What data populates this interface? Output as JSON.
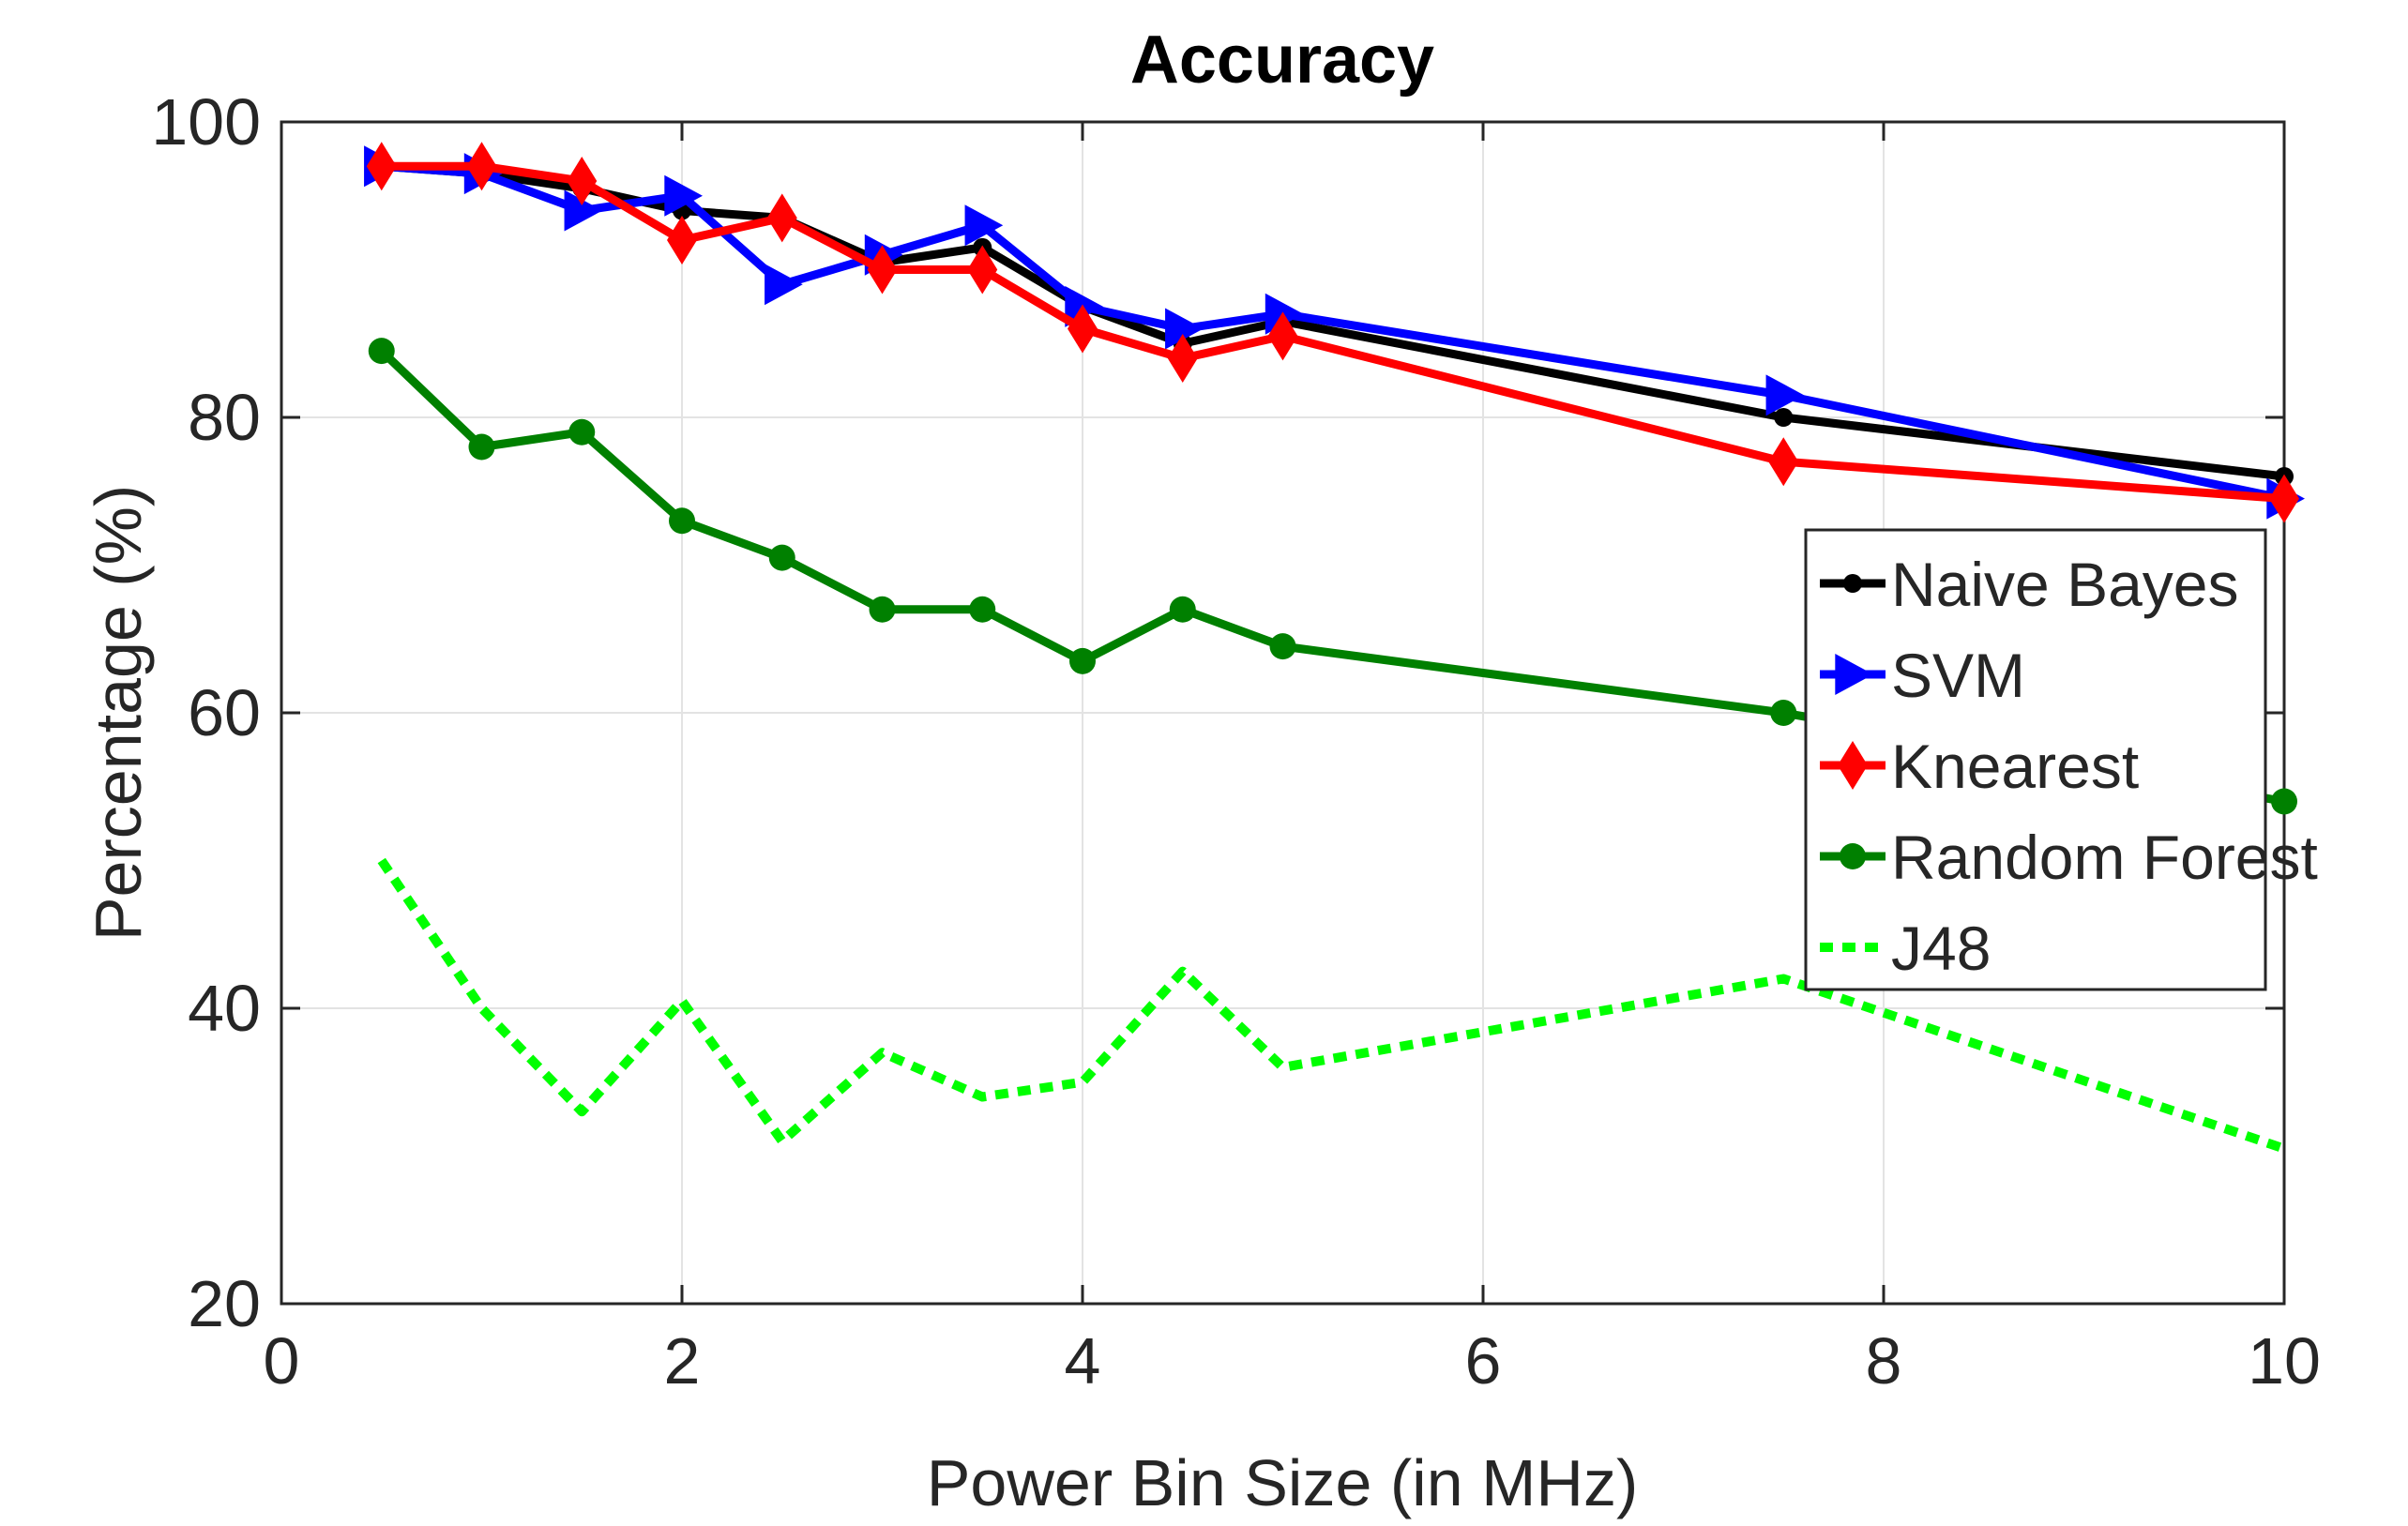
{
  "chart_data": {
    "type": "line",
    "title": "Accuracy",
    "xlabel": "Power Bin Size (in MHz)",
    "ylabel": "Percentage (%)",
    "xlim": [
      0,
      10
    ],
    "ylim": [
      20,
      100
    ],
    "xticks": [
      0,
      2,
      4,
      6,
      8,
      10
    ],
    "yticks": [
      20,
      40,
      60,
      80,
      100
    ],
    "grid": true,
    "legend_position": "center-right",
    "x": [
      0.5,
      1,
      1.5,
      2,
      2.5,
      3,
      3.5,
      4,
      4.5,
      5,
      7.5,
      10
    ],
    "series": [
      {
        "name": "Naive Bayes",
        "color": "#000000",
        "marker": "dot",
        "dashed": false,
        "values": [
          97,
          96.5,
          95.5,
          94,
          93.5,
          90.5,
          91.5,
          87.5,
          85,
          86.5,
          80,
          76
        ]
      },
      {
        "name": "SVM",
        "color": "#0000ff",
        "marker": "triangle-right",
        "dashed": false,
        "values": [
          97,
          96.5,
          94,
          95,
          89,
          91,
          93,
          87.5,
          86,
          87,
          81.5,
          74.5
        ]
      },
      {
        "name": "Knearest",
        "color": "#ff0000",
        "marker": "diamond",
        "dashed": false,
        "values": [
          97,
          97,
          96,
          92,
          93.5,
          90,
          90,
          86,
          84,
          85.5,
          77,
          74.5
        ]
      },
      {
        "name": "Random Forest",
        "color": "#008000",
        "marker": "circle",
        "dashed": false,
        "values": [
          84.5,
          78,
          79,
          73,
          70.5,
          67,
          67,
          63.5,
          67,
          64.5,
          60,
          54
        ]
      },
      {
        "name": "J48",
        "color": "#00ff00",
        "marker": "none",
        "dashed": true,
        "values": [
          50,
          40,
          33,
          40.5,
          31,
          37,
          34,
          35,
          42.5,
          36,
          42,
          30.5
        ]
      }
    ]
  }
}
